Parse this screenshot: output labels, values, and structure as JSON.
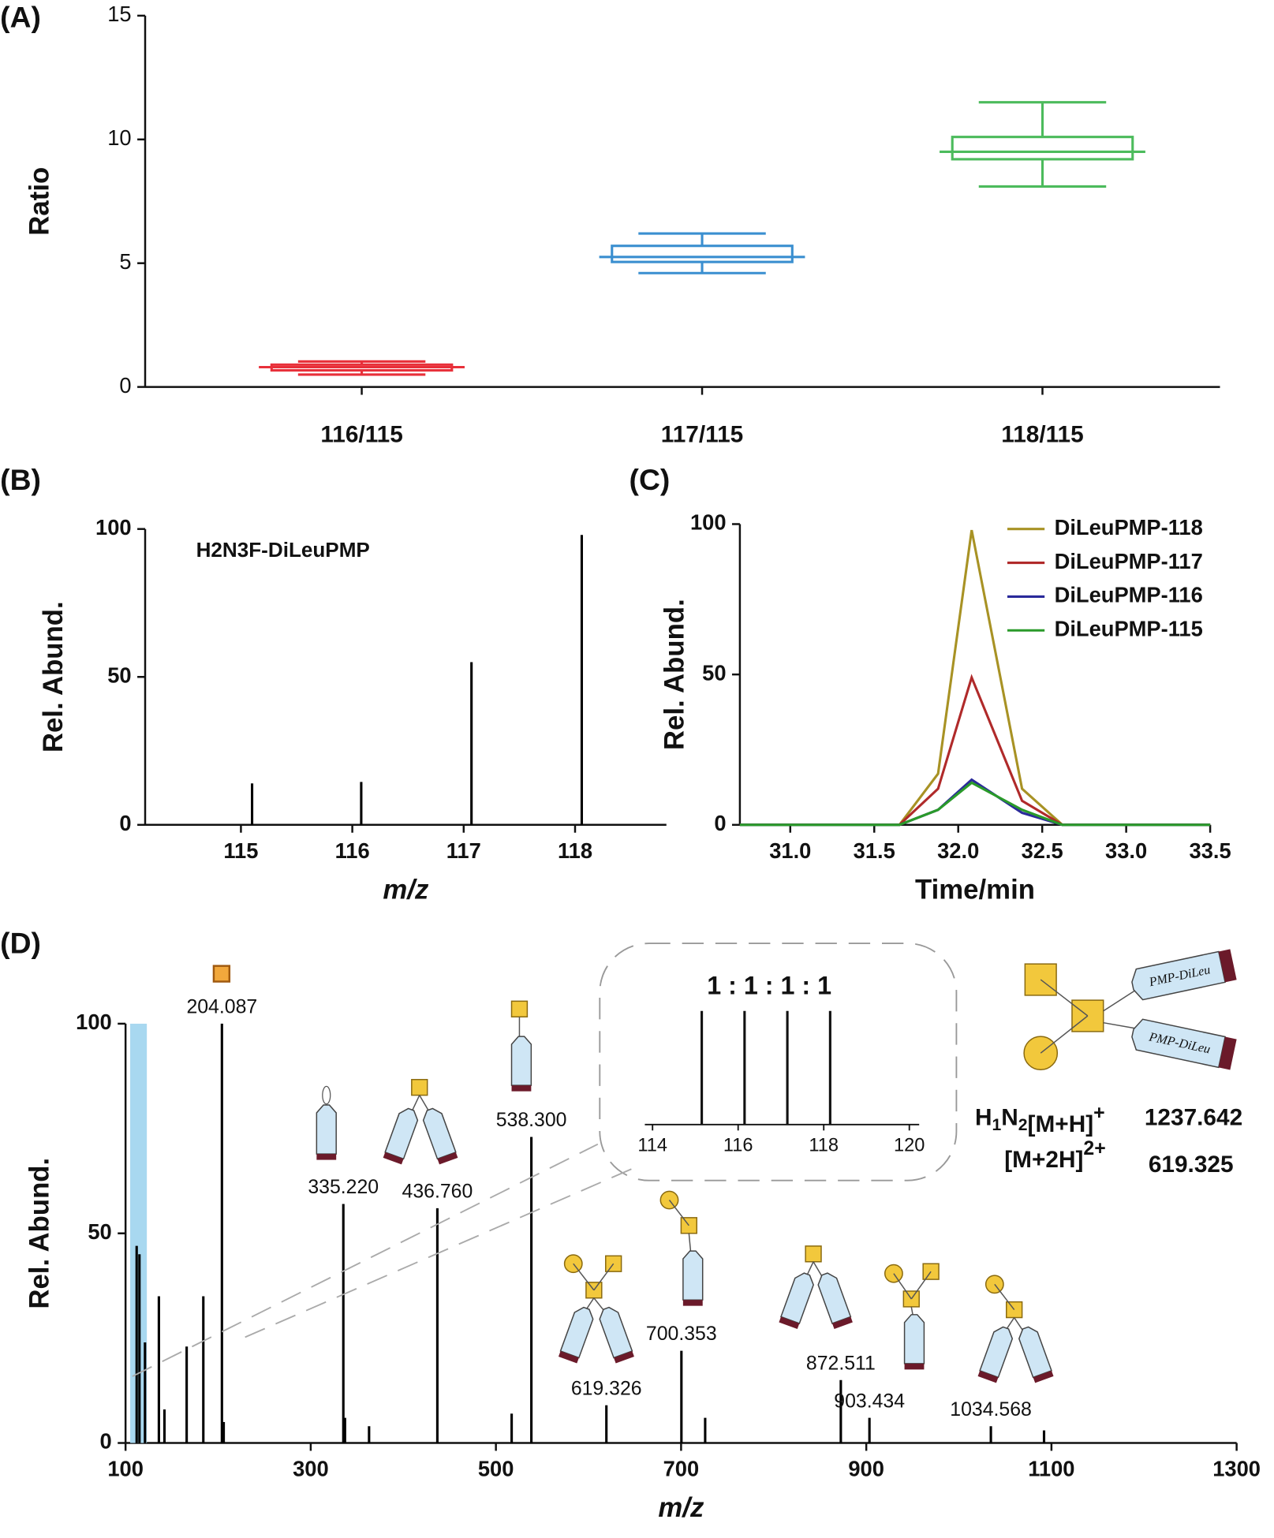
{
  "chart_data": [
    {
      "type": "box",
      "panel_label": "(A)",
      "ylabel": "Ratio",
      "categories": [
        "116/115",
        "117/115",
        "118/115"
      ],
      "colors": [
        "#e8303a",
        "#3a8fd0",
        "#4cbb5c"
      ],
      "min": [
        0.5,
        4.6,
        8.1
      ],
      "q1": [
        0.67,
        5.05,
        9.2
      ],
      "median": [
        0.8,
        5.25,
        9.5
      ],
      "q3": [
        0.9,
        5.7,
        10.1
      ],
      "max": [
        1.03,
        6.2,
        11.5
      ],
      "ylim": [
        0,
        15
      ],
      "yticks": [
        0,
        5,
        10,
        15
      ]
    },
    {
      "type": "spectrum",
      "panel_label": "(B)",
      "annotation": "H2N3F-DiLeuPMP",
      "xlabel": "m/z",
      "ylabel": "Rel. Abund.",
      "color": "#000000",
      "x": [
        115.1,
        116.08,
        117.07,
        118.06
      ],
      "values": [
        14,
        14.5,
        55,
        98
      ],
      "xlim": [
        114.14,
        118.82
      ],
      "xticks": [
        115,
        116,
        117,
        118
      ],
      "ylim": [
        0,
        100
      ],
      "yticks": [
        0,
        50,
        100
      ]
    },
    {
      "type": "line",
      "panel_label": "(C)",
      "xlabel": "Time/min",
      "ylabel": "Rel. Abund.",
      "legend": "upper-right",
      "x": [
        30.7,
        31.65,
        31.88,
        32.08,
        32.38,
        32.62,
        33.5
      ],
      "series": [
        {
          "name": "DiLeuPMP-118",
          "color": "#a89224",
          "values": [
            0,
            0,
            17,
            98,
            12,
            0,
            0
          ]
        },
        {
          "name": "DiLeuPMP-117",
          "color": "#b02a2a",
          "values": [
            0,
            0,
            12,
            49,
            8,
            0,
            0
          ]
        },
        {
          "name": "DiLeuPMP-116",
          "color": "#2a2a9a",
          "values": [
            0,
            0,
            5,
            15,
            4,
            0,
            0
          ]
        },
        {
          "name": "DiLeuPMP-115",
          "color": "#2a9a2a",
          "values": [
            0,
            0,
            5,
            14,
            5,
            0,
            0
          ]
        }
      ],
      "xlim": [
        30.7,
        33.5
      ],
      "xticks": [
        {
          "value": 31,
          "label": "31.0"
        },
        31.5,
        {
          "value": 32,
          "label": "32.0"
        },
        32.5,
        {
          "value": 33,
          "label": "33.0"
        },
        33.5
      ],
      "ylim": [
        0,
        100
      ],
      "yticks": [
        0,
        50,
        100
      ]
    },
    {
      "type": "spectrum",
      "panel_label": "(D)",
      "xlabel": "m/z",
      "ylabel": "Rel. Abund.",
      "color": "#000000",
      "highlight": [
        105,
        123
      ],
      "highlight_color": "#a8d8f0",
      "x": [
        112,
        115,
        121,
        136,
        142,
        166,
        184,
        204.087,
        206,
        335.22,
        337,
        363,
        436.76,
        517,
        538.3,
        619.326,
        700.353,
        726,
        872.511,
        903.434,
        1034.568,
        1092
      ],
      "values": [
        47,
        45,
        24,
        35,
        8,
        23,
        35,
        100,
        5,
        57,
        6,
        4,
        56,
        7,
        73,
        9,
        22,
        6,
        15,
        6,
        4,
        3
      ],
      "x_labels": [
        null,
        null,
        null,
        null,
        null,
        null,
        null,
        "204.087",
        null,
        "335.220",
        null,
        null,
        "436.760",
        null,
        "538.300",
        "619.326",
        "700.353",
        null,
        "872.511",
        "903.434",
        "1034.568",
        null
      ],
      "xlim": [
        100,
        1300
      ],
      "xticks": [
        100,
        300,
        500,
        700,
        900,
        1100,
        1300
      ],
      "ylim": [
        0,
        100
      ],
      "yticks": [
        0,
        50,
        100
      ],
      "inset": {
        "title": "1 : 1 : 1 : 1",
        "x": [
          115.15,
          116.15,
          117.15,
          118.15
        ],
        "values": [
          100,
          100,
          100,
          100
        ],
        "xlim": [
          113.82,
          120.23
        ],
        "xticks": [
          114,
          116,
          118,
          120
        ],
        "ylim": [
          0,
          100
        ]
      },
      "structure": {
        "tag_label": "PMP-DiLeu",
        "ion1": {
          "formula": [
            "H",
            "1",
            "N",
            "2"
          ],
          "adduct": "[M+H]",
          "charge": "+",
          "mz": "1237.642"
        },
        "ion2": {
          "adduct": "[M+2H]",
          "charge": "2+",
          "mz": "619.325"
        }
      }
    }
  ]
}
